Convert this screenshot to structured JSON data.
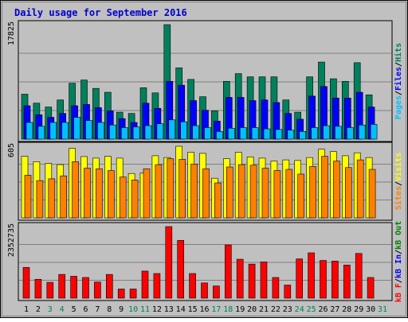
{
  "title": "Daily usage for September 2016",
  "colors": {
    "background": "#c0c0c0",
    "title": "#0000cc",
    "hits": "#00805c",
    "files": "#0000ff",
    "pages": "#00c0ff",
    "visits": "#ffff00",
    "sites": "#ff8000",
    "kbin": "#0000ff",
    "kbout": "#008000",
    "kbf": "#ff0000",
    "day_normal": "#000000",
    "day_weekend": "#00805c"
  },
  "chart_data": [
    {
      "type": "bar",
      "panel": "hits-files-pages",
      "ylim": [
        0,
        17825
      ],
      "ytick": "17825",
      "right_label_parts": [
        {
          "text": "Pages",
          "series": "pages"
        },
        {
          "text": "/",
          "series": "sep"
        },
        {
          "text": "Files",
          "series": "files"
        },
        {
          "text": "/",
          "series": "sep"
        },
        {
          "text": "Hits",
          "series": "hits"
        }
      ],
      "categories": [
        "1",
        "2",
        "3",
        "4",
        "5",
        "6",
        "7",
        "8",
        "9",
        "10",
        "11",
        "12",
        "13",
        "14",
        "15",
        "16",
        "17",
        "18",
        "19",
        "20",
        "21",
        "22",
        "23",
        "24",
        "25",
        "26",
        "27",
        "28",
        "29",
        "30",
        "31"
      ],
      "series": [
        {
          "name": "Hits",
          "key": "hits",
          "values": [
            7000,
            5600,
            5000,
            6100,
            8700,
            9200,
            7900,
            7300,
            4200,
            4000,
            8000,
            7200,
            17825,
            11100,
            9300,
            6600,
            4400,
            9000,
            10200,
            9700,
            9700,
            9700,
            6100,
            4200,
            9700,
            12000,
            9400,
            9000,
            11900,
            6900,
            0
          ]
        },
        {
          "name": "Files",
          "key": "files",
          "values": [
            5200,
            3800,
            3400,
            4000,
            5200,
            5400,
            4900,
            4400,
            3200,
            2600,
            5600,
            4800,
            9000,
            8400,
            6000,
            4500,
            2800,
            6500,
            6500,
            6000,
            6100,
            5700,
            4000,
            3100,
            6700,
            8200,
            6400,
            6400,
            7300,
            5000,
            0
          ]
        },
        {
          "name": "Pages",
          "key": "pages",
          "values": [
            2600,
            2000,
            2600,
            2600,
            3400,
            2900,
            2600,
            2200,
            1800,
            1900,
            2100,
            2400,
            3000,
            2700,
            2100,
            1800,
            1200,
            1700,
            1800,
            1800,
            1600,
            1500,
            1400,
            1200,
            1800,
            2100,
            2000,
            1800,
            2200,
            2300,
            0
          ]
        }
      ]
    },
    {
      "type": "bar",
      "panel": "visits-sites",
      "ylim": [
        0,
        605
      ],
      "ytick": "605",
      "right_label_parts": [
        {
          "text": "Sites",
          "series": "sites"
        },
        {
          "text": "/",
          "series": "sep"
        },
        {
          "text": "Visits",
          "series": "visits"
        }
      ],
      "categories": [
        "1",
        "2",
        "3",
        "4",
        "5",
        "6",
        "7",
        "8",
        "9",
        "10",
        "11",
        "12",
        "13",
        "14",
        "15",
        "16",
        "17",
        "18",
        "19",
        "20",
        "21",
        "22",
        "23",
        "24",
        "25",
        "26",
        "27",
        "28",
        "29",
        "30",
        "31"
      ],
      "series": [
        {
          "name": "Visits",
          "key": "visits",
          "values": [
            520,
            475,
            460,
            450,
            588,
            518,
            505,
            520,
            505,
            375,
            378,
            525,
            510,
            605,
            555,
            545,
            335,
            500,
            555,
            515,
            505,
            480,
            490,
            485,
            510,
            580,
            560,
            525,
            550,
            510,
            0
          ]
        },
        {
          "name": "Sites",
          "key": "sites",
          "values": [
            360,
            315,
            330,
            355,
            475,
            420,
            415,
            400,
            345,
            320,
            415,
            450,
            500,
            495,
            455,
            415,
            295,
            430,
            450,
            445,
            420,
            400,
            410,
            370,
            435,
            520,
            480,
            425,
            490,
            410,
            0
          ]
        }
      ]
    },
    {
      "type": "bar",
      "panel": "kbf-kbin-kbout",
      "ylim": [
        0,
        2352735
      ],
      "ytick": "2352735",
      "right_label_parts": [
        {
          "text": "kB F",
          "series": "kbf"
        },
        {
          "text": "/",
          "series": "sep"
        },
        {
          "text": "kB In",
          "series": "kbin"
        },
        {
          "text": "/",
          "series": "sep"
        },
        {
          "text": "kB Out",
          "series": "kbout"
        }
      ],
      "categories": [
        "1",
        "2",
        "3",
        "4",
        "5",
        "6",
        "7",
        "8",
        "9",
        "10",
        "11",
        "12",
        "13",
        "14",
        "15",
        "16",
        "17",
        "18",
        "19",
        "20",
        "21",
        "22",
        "23",
        "24",
        "25",
        "26",
        "27",
        "28",
        "29",
        "30",
        "31"
      ],
      "series": [
        {
          "name": "kB F",
          "key": "kbf",
          "values": [
            1010000,
            620000,
            520000,
            780000,
            720000,
            680000,
            530000,
            780000,
            300000,
            300000,
            890000,
            810000,
            2352735,
            1900000,
            810000,
            500000,
            400000,
            1750000,
            1280000,
            1120000,
            1190000,
            680000,
            430000,
            1290000,
            1490000,
            1240000,
            1220000,
            1090000,
            1470000,
            680000,
            0
          ]
        }
      ]
    }
  ],
  "day_labels": [
    "1",
    "2",
    "3",
    "4",
    "5",
    "6",
    "7",
    "8",
    "9",
    "10",
    "11",
    "12",
    "13",
    "14",
    "15",
    "16",
    "17",
    "18",
    "19",
    "20",
    "21",
    "22",
    "23",
    "24",
    "25",
    "26",
    "27",
    "28",
    "29",
    "30",
    "31"
  ],
  "weekend_days": [
    "3",
    "4",
    "10",
    "11",
    "17",
    "18",
    "24",
    "25",
    "31"
  ]
}
